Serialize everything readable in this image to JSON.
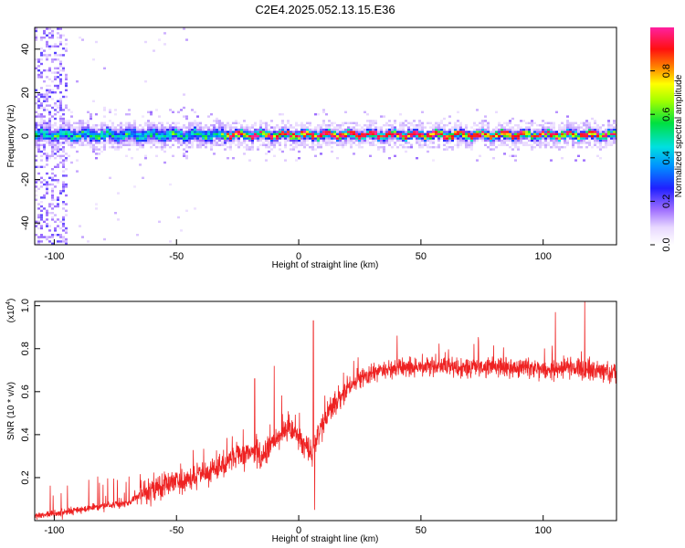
{
  "title": "C2E4.2025.052.13.15.E36",
  "colors": {
    "snr_line": "#ee2222",
    "frame": "#000000"
  },
  "chart_data": [
    {
      "type": "heatmap",
      "name": "spectrogram",
      "xlabel": "Height of straight line (km)",
      "ylabel": "Frequency (Hz)",
      "xlim": [
        -108,
        130
      ],
      "ylim": [
        -50,
        50
      ],
      "xticks": [
        -100,
        -50,
        0,
        50,
        100
      ],
      "yticks": [
        -40,
        -20,
        0,
        20,
        40
      ],
      "colorbar": {
        "label": "Normalized spectral amplitude",
        "range": [
          0.0,
          1.0
        ],
        "ticks": [
          0.0,
          0.2,
          0.4,
          0.6,
          0.8
        ],
        "colormap": "rainbow (white-violet-blue-cyan-green-yellow-red-magenta)"
      },
      "features": {
        "ridge_frequency_hz": 0,
        "strong_ridge_height_range_km": [
          -30,
          130
        ],
        "noisy_band_height_range_km": [
          -108,
          -95
        ],
        "band_halfwidth_hz": 4
      },
      "grid": false
    },
    {
      "type": "line",
      "name": "snr",
      "xlabel": "Height of straight line (km)",
      "ylabel": "SNR (10 * v/v)",
      "yscale_label": "(x10",
      "yscale_exponent": "4",
      "yscale_suffix": ")",
      "xlim": [
        -108,
        130
      ],
      "ylim": [
        0,
        1.02
      ],
      "xticks": [
        -100,
        -50,
        0,
        50,
        100
      ],
      "yticks": [
        0.2,
        0.4,
        0.6,
        0.8,
        1.0
      ],
      "ytick_labels": [
        "0.2",
        "0.4",
        "0.6",
        "0.8",
        "1.0"
      ],
      "trend": {
        "x": [
          -108,
          -100,
          -90,
          -80,
          -70,
          -65,
          -60,
          -50,
          -40,
          -30,
          -20,
          -15,
          -10,
          -5,
          0,
          5,
          10,
          15,
          20,
          25,
          30,
          40,
          50,
          60,
          70,
          80,
          90,
          100,
          110,
          120,
          130
        ],
        "y": [
          0.02,
          0.03,
          0.05,
          0.07,
          0.08,
          0.12,
          0.15,
          0.18,
          0.21,
          0.26,
          0.33,
          0.3,
          0.38,
          0.42,
          0.4,
          0.3,
          0.46,
          0.55,
          0.62,
          0.66,
          0.69,
          0.71,
          0.72,
          0.72,
          0.71,
          0.72,
          0.71,
          0.7,
          0.71,
          0.7,
          0.69
        ]
      },
      "spikes": [
        {
          "x": 6,
          "y": 0.93
        },
        {
          "x": 6.5,
          "y": 0.05
        },
        {
          "x": 117,
          "y": 1.02
        },
        {
          "x": 105,
          "y": 0.97
        },
        {
          "x": -18,
          "y": 0.66
        },
        {
          "x": -10,
          "y": 0.72
        }
      ],
      "grid": false
    }
  ]
}
